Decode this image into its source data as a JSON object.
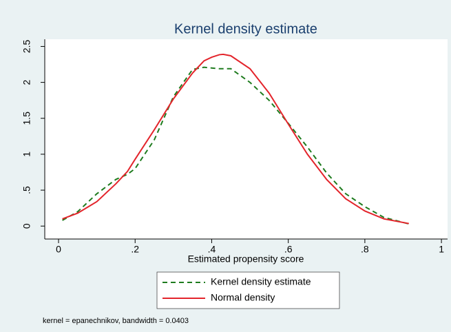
{
  "chart_data": {
    "type": "line",
    "title": "Kernel density estimate",
    "x_label": "Estimated propensity score",
    "note": "kernel = epanechnikov, bandwidth = 0.0403",
    "x": [
      0.01,
      0.05,
      0.1,
      0.15,
      0.18,
      0.2,
      0.25,
      0.3,
      0.35,
      0.38,
      0.4,
      0.42,
      0.43,
      0.45,
      0.5,
      0.55,
      0.6,
      0.65,
      0.7,
      0.75,
      0.8,
      0.85,
      0.915
    ],
    "series": [
      {
        "name": "Kernel density estimate",
        "color": "#1e7b1e",
        "dashed": true,
        "values": [
          0.08,
          0.2,
          0.45,
          0.65,
          0.72,
          0.8,
          1.2,
          1.8,
          2.18,
          2.21,
          2.2,
          2.19,
          2.19,
          2.19,
          2.0,
          1.75,
          1.43,
          1.1,
          0.74,
          0.45,
          0.27,
          0.12,
          0.03
        ]
      },
      {
        "name": "Normal density",
        "color": "#e3242b",
        "dashed": false,
        "values": [
          0.1,
          0.18,
          0.34,
          0.59,
          0.76,
          0.93,
          1.34,
          1.77,
          2.13,
          2.3,
          2.35,
          2.385,
          2.39,
          2.37,
          2.19,
          1.85,
          1.42,
          1.0,
          0.65,
          0.38,
          0.21,
          0.1,
          0.035
        ]
      }
    ],
    "xlim": [
      -0.036,
      1.016
    ],
    "ylim": [
      -0.18,
      2.6
    ],
    "xticks": [
      0,
      {
        "value": 0.2,
        "label": ".2"
      },
      {
        "value": 0.4,
        "label": ".4"
      },
      {
        "value": 0.6,
        "label": ".6"
      },
      {
        "value": 0.8,
        "label": ".8"
      },
      1
    ],
    "yticks": [
      0,
      {
        "value": 0.5,
        "label": ".5"
      },
      1,
      1.5,
      2,
      2.5
    ]
  }
}
